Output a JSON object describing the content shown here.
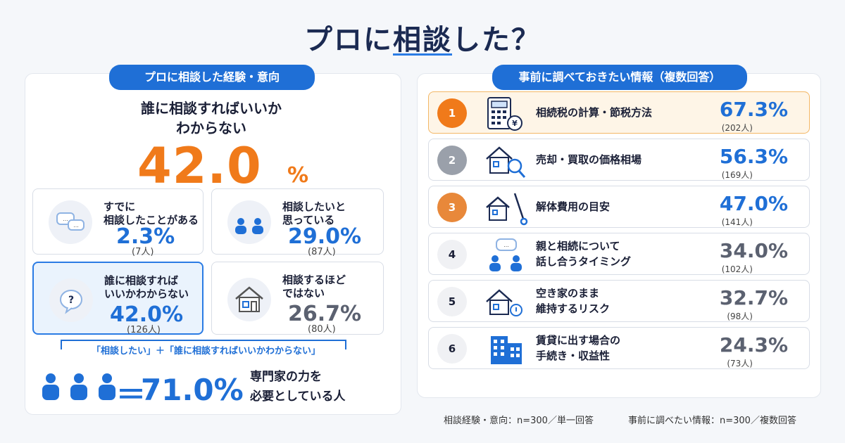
{
  "title": {
    "pre": "プロに",
    "highlight": "相談",
    "post": "した？"
  },
  "left": {
    "pill": "プロに相談した経験・意向",
    "headline_1": "誰に相談すればいいか",
    "headline_2": "わからない",
    "big_value": "42.0",
    "big_unit": "%",
    "cards": [
      {
        "label_1": "すでに",
        "label_2": "相談したことがある",
        "pct": "2.3%",
        "count": "(7人)",
        "icon": "speech-bubbles-icon"
      },
      {
        "label_1": "相談したいと",
        "label_2": "思っている",
        "pct": "29.0%",
        "count": "(87人)",
        "icon": "two-people-icon"
      },
      {
        "label_1": "誰に相談すれば",
        "label_2": "いいかわからない",
        "pct": "42.0%",
        "count": "(126人)",
        "icon": "question-bubble-icon"
      },
      {
        "label_1": "相談するほど",
        "label_2": "ではない",
        "pct": "26.7%",
        "count": "(80人)",
        "icon": "house-icon"
      }
    ],
    "note": "「相談したい」＋「誰に相談すればいいかわからない」",
    "total_eq": "＝",
    "total": "71.0%",
    "total_desc_1": "専門家の力を",
    "total_desc_2": "必要としている人"
  },
  "right": {
    "pill": "事前に調べておきたい情報（複数回答）",
    "items": [
      {
        "rank": "1",
        "label_1": "相続税の計算・節税方法",
        "label_2": "",
        "pct": "67.3%",
        "count": "(202人)",
        "icon": "calculator-yen-icon"
      },
      {
        "rank": "2",
        "label_1": "売却・買取の価格相場",
        "label_2": "",
        "pct": "56.3%",
        "count": "(169人)",
        "icon": "house-magnifier-icon"
      },
      {
        "rank": "3",
        "label_1": "解体費用の目安",
        "label_2": "",
        "pct": "47.0%",
        "count": "(141人)",
        "icon": "house-thermometer-icon"
      },
      {
        "rank": "4",
        "label_1": "親と相続について",
        "label_2": "話し合うタイミング",
        "pct": "34.0%",
        "count": "(102人)",
        "icon": "people-talking-icon"
      },
      {
        "rank": "5",
        "label_1": "空き家のまま",
        "label_2": "維持するリスク",
        "pct": "32.7%",
        "count": "(98人)",
        "icon": "house-alert-icon"
      },
      {
        "rank": "6",
        "label_1": "賃貸に出す場合の",
        "label_2": "手続き・収益性",
        "pct": "24.3%",
        "count": "(73人)",
        "icon": "buildings-icon"
      }
    ]
  },
  "footer": {
    "left": "相談経験・意向：n=300／単一回答",
    "right": "事前に調べたい情報：n=300／複数回答"
  },
  "colors": {
    "accent_blue": "#1f6fd6",
    "accent_orange": "#f07a1a",
    "rank_gray": "#9aa0aa",
    "rank_light": "#f0f1f4"
  }
}
